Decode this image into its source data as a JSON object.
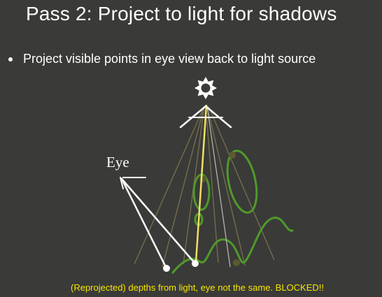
{
  "slide": {
    "title": "Pass 2: Project to light for shadows",
    "bullet": "Project visible points in eye view back to light source",
    "eye_label": "Eye",
    "caption": "(Reprojected) depths from light, eye not the same.  BLOCKED!!"
  },
  "colors": {
    "background": "#3a3a38",
    "text": "#ffffff",
    "caption": "#f5e600",
    "surface": "#4f9a2a",
    "light_frustum": "#7a7450",
    "eye_rays": "#ffffff",
    "light_ray": "#f0e060"
  },
  "icons": {
    "light_source": "light-source-icon",
    "eye": "eye-camera-icon"
  }
}
